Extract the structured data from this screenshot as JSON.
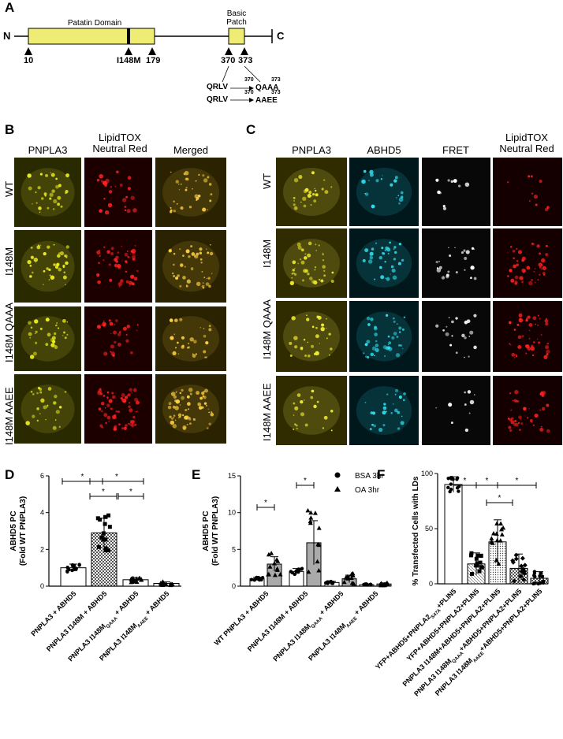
{
  "panelA": {
    "label": "A",
    "n_term": "N",
    "c_term": "C",
    "patatin_label": "Patatin Domain",
    "basic_label_1": "Basic",
    "basic_label_2": "Patch",
    "sites": [
      "10",
      "I148M",
      "179",
      "370",
      "373"
    ],
    "mut1_from": "QRLV",
    "mut1_to": "QAAA",
    "mut1_n1": "370",
    "mut1_n2": "373",
    "mut2_from": "QRLV",
    "mut2_to": "AAEE",
    "mut2_n1": "370",
    "mut2_n2": "373",
    "domain_color": "#eeec72"
  },
  "panelB": {
    "label": "B",
    "columns": [
      "PNPLA3",
      "LipidTOX Neutral Red",
      "Merged"
    ],
    "col2_line1": "LipidTOX",
    "col2_line2": "Neutral Red",
    "rows": [
      "WT",
      "I148M",
      "I148M QAAA",
      "I148M AAEE"
    ]
  },
  "panelC": {
    "label": "C",
    "columns": [
      "PNPLA3",
      "ABHD5",
      "FRET"
    ],
    "col4_line1": "LipidTOX",
    "col4_line2": "Neutral Red",
    "rows": [
      "WT",
      "I148M",
      "I148M QAAA",
      "I148M AAEE"
    ]
  },
  "panelD": {
    "label": "D",
    "sig": "*"
  },
  "panelE": {
    "label": "E",
    "sig": "*"
  },
  "panelF": {
    "label": "F",
    "sig": "*"
  },
  "chart_data": [
    {
      "type": "bar",
      "panel": "D",
      "ylabel": "ABHD5 PC (Fold WT PNPLA3)",
      "ylabel_1": "ABHD5 PC",
      "ylabel_2": "(Fold WT PNPLA3)",
      "ylim": [
        0,
        6
      ],
      "yticks": [
        "0",
        "2",
        "4",
        "6"
      ],
      "categories": [
        "PNPLA3 + ABHD5",
        "PNPLA3 I148M + ABHD5",
        "PNPLA3 I148M QAAA + ABHD5",
        "PNPLA3 I148M AAEE + ABHD5"
      ],
      "cat_labels": [
        [
          "PNPLA3 + ABHD5",
          ""
        ],
        [
          "PNPLA3 I148M + ABHD5",
          ""
        ],
        [
          "PNPLA3 I148M",
          "QAAA",
          " + ABHD5"
        ],
        [
          "PNPLA3 I148M",
          "AAEE",
          " + ABHD5"
        ]
      ],
      "values": [
        1.0,
        2.9,
        0.35,
        0.15
      ],
      "errors": [
        0.2,
        0.8,
        0.12,
        0.08
      ]
    },
    {
      "type": "bar",
      "panel": "E",
      "ylabel_1": "ABHD5 PC",
      "ylabel_2": "(Fold WT PNPLA3)",
      "ylim": [
        0,
        15
      ],
      "yticks": [
        "0",
        "5",
        "10",
        "15"
      ],
      "legend": [
        "BSA 3hr",
        "OA 3hr"
      ],
      "legend_position": "top-right",
      "categories": [
        "WT PNPLA3 + ABHD5",
        "PNPLA3 I148M + ABHD5",
        "PNPLA3 I148M QAAA + ABHD5",
        "PNPLA3 I148M AAEE + ABHD5"
      ],
      "cat_labels": [
        [
          "WT PNPLA3 + ABHD5",
          ""
        ],
        [
          "PNPLA3 I148M + ABHD5",
          ""
        ],
        [
          "PNPLA3 I148M",
          "QAAA",
          " + ABHD5"
        ],
        [
          "PNPLA3 I148M",
          "AAEE",
          " + ABHD5"
        ]
      ],
      "series": [
        {
          "name": "BSA 3hr",
          "values": [
            1.0,
            2.0,
            0.5,
            0.2
          ],
          "errors": [
            0.2,
            0.4,
            0.15,
            0.1
          ]
        },
        {
          "name": "OA 3hr",
          "values": [
            3.0,
            5.9,
            1.0,
            0.3
          ],
          "errors": [
            1.0,
            3.0,
            0.5,
            0.15
          ]
        }
      ]
    },
    {
      "type": "bar",
      "panel": "F",
      "ylabel": "% Transfected Cells with LDs",
      "ylim": [
        0,
        100
      ],
      "yticks": [
        "0",
        "50",
        "100"
      ],
      "categories": [
        "YFP+ABHD5+PNPLA2 S47A+PLIN5",
        "YFP+ABHD5+PNPLA2+PLIN5",
        "PNPLA3 I148M+ABHD5+PNPLA2+PLIN5",
        "PNPLA3 I148M QAAA+ABHD5+PNPLA2+PLIN5",
        "PNPLA3 I148M AAEE+ABHD5+PNPLA2+PLIN5"
      ],
      "cat_labels": [
        [
          "YFP+ABHD5+PNPLA2",
          "S47A",
          "+PLIN5"
        ],
        [
          "YFP+ABHD5+PNPLA2+PLIN5",
          ""
        ],
        [
          "PNPLA3 I148M+ABHD5+PNPLA2+PLIN5",
          ""
        ],
        [
          "PNPLA3 I148M",
          "QAAA",
          "+ABHD5+PNPLA2+PLIN5"
        ],
        [
          "PNPLA3 I148M",
          "AAEE",
          "+ABHD5+PNPLA2+PLIN5"
        ]
      ],
      "values": [
        90,
        18,
        38,
        14,
        5
      ],
      "errors": [
        7,
        10,
        20,
        13,
        6
      ]
    }
  ]
}
